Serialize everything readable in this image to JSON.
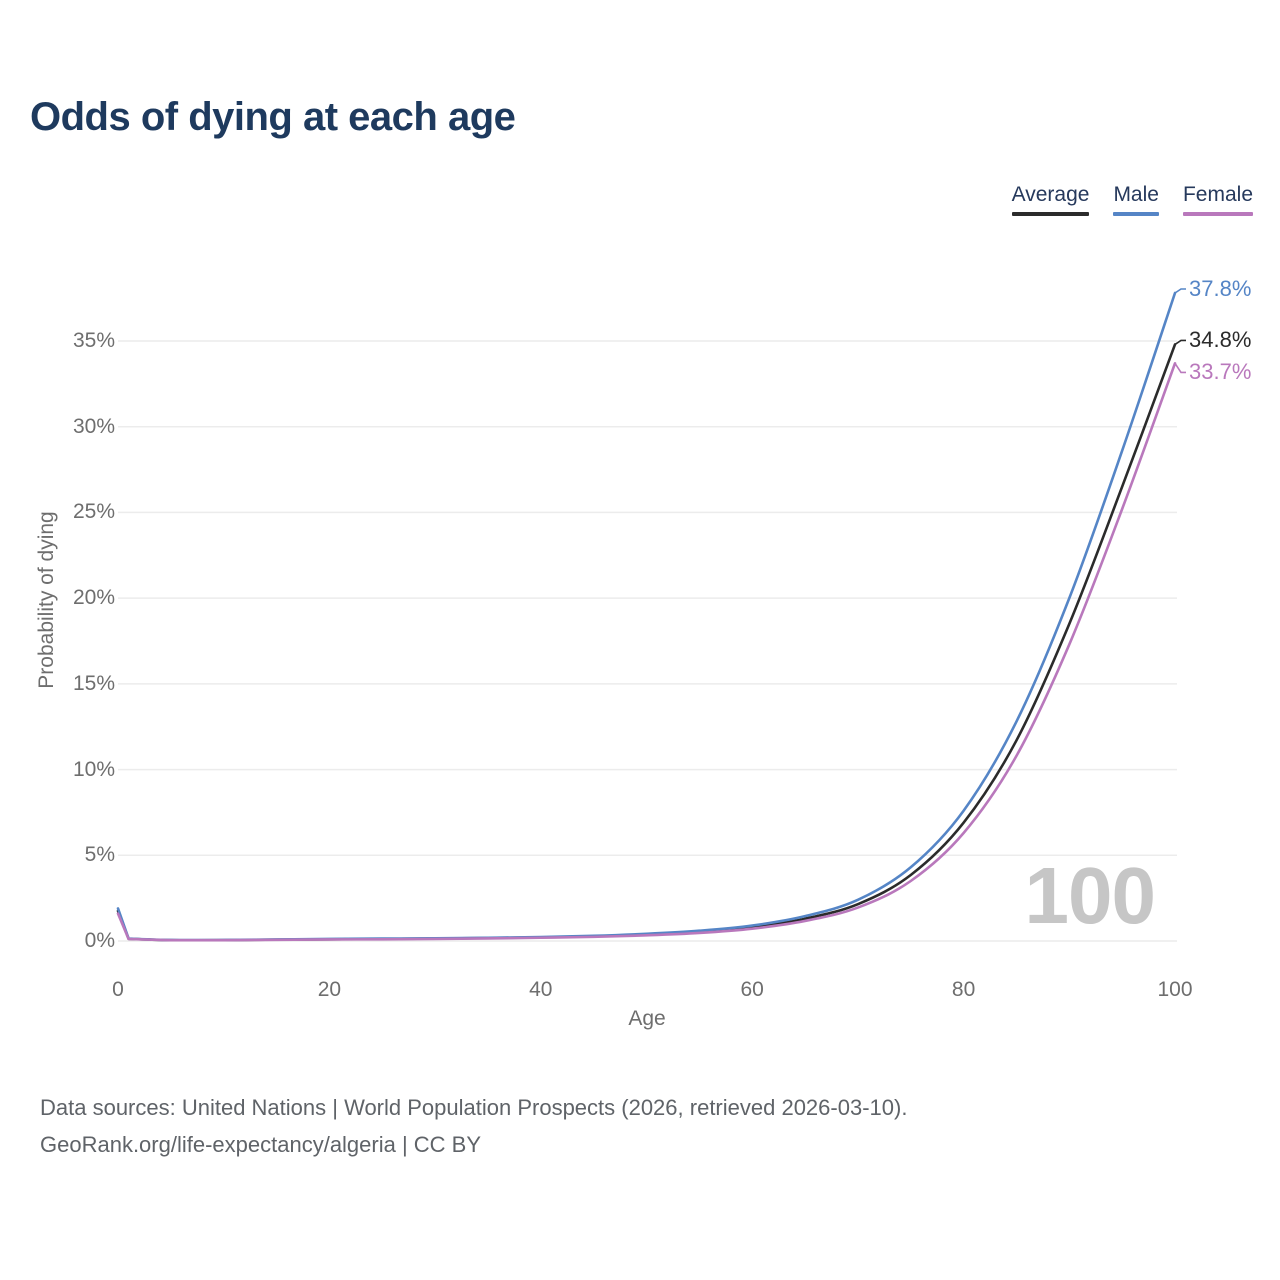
{
  "chart_data": {
    "type": "line",
    "title": "Odds of dying at each age",
    "xlabel": "Age",
    "ylabel": "Probability of dying",
    "xlim": [
      0,
      100
    ],
    "ylim": [
      0,
      38
    ],
    "x_ticks": [
      0,
      20,
      40,
      60,
      80,
      100
    ],
    "y_ticks": [
      {
        "value": 0,
        "label": "0%"
      },
      {
        "value": 5,
        "label": "5%"
      },
      {
        "value": 10,
        "label": "10%"
      },
      {
        "value": 15,
        "label": "15%"
      },
      {
        "value": 20,
        "label": "20%"
      },
      {
        "value": 25,
        "label": "25%"
      },
      {
        "value": 30,
        "label": "30%"
      },
      {
        "value": 35,
        "label": "35%"
      }
    ],
    "grid": "horizontal",
    "legend_position": "top-right",
    "watermark": "100",
    "ages": [
      0,
      1,
      5,
      10,
      15,
      20,
      25,
      30,
      35,
      40,
      45,
      50,
      55,
      60,
      65,
      70,
      75,
      80,
      85,
      90,
      95,
      100
    ],
    "series": [
      {
        "name": "Average",
        "color": "#2b2b2b",
        "end_label": "34.8%",
        "values": [
          1.75,
          0.13,
          0.05,
          0.05,
          0.08,
          0.1,
          0.12,
          0.14,
          0.17,
          0.21,
          0.27,
          0.37,
          0.53,
          0.8,
          1.3,
          2.15,
          3.85,
          6.9,
          11.7,
          18.5,
          26.5,
          34.8
        ]
      },
      {
        "name": "Male",
        "color": "#5585c6",
        "end_label": "37.8%",
        "values": [
          1.9,
          0.14,
          0.06,
          0.06,
          0.09,
          0.12,
          0.14,
          0.16,
          0.19,
          0.23,
          0.3,
          0.42,
          0.6,
          0.9,
          1.45,
          2.4,
          4.3,
          7.6,
          12.8,
          20.0,
          28.6,
          37.8
        ]
      },
      {
        "name": "Female",
        "color": "#b978bc",
        "end_label": "33.7%",
        "values": [
          1.6,
          0.12,
          0.05,
          0.05,
          0.07,
          0.09,
          0.1,
          0.12,
          0.15,
          0.19,
          0.24,
          0.33,
          0.47,
          0.72,
          1.17,
          1.95,
          3.5,
          6.3,
          10.8,
          17.3,
          25.2,
          33.7
        ]
      }
    ]
  },
  "footer": {
    "line1": "Data sources: United Nations | World Population Prospects (2026, retrieved 2026-03-10).",
    "line2": "GeoRank.org/life-expectancy/algeria | CC BY"
  }
}
